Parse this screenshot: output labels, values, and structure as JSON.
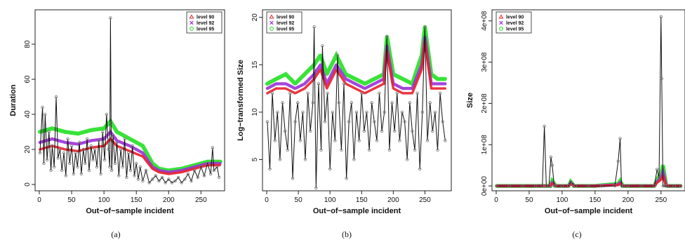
{
  "colors": {
    "observed": "#111111",
    "observed_points": "#777777",
    "level_90": "#e8202a",
    "level_92": "#9b30d8",
    "level_95": "#22e022"
  },
  "chart_data": [
    {
      "type": "line",
      "caption": "(a)",
      "xlabel": "Out−of−sample incident",
      "ylabel": "Duration",
      "xlim": [
        0,
        280
      ],
      "ylim": [
        -2,
        98
      ],
      "xticks": [
        0,
        50,
        100,
        150,
        200,
        250
      ],
      "xtick_labels": [
        "0",
        "50",
        "100",
        "150",
        "200",
        "250"
      ],
      "yticks": [
        0,
        20,
        40,
        60,
        80
      ],
      "ytick_labels": [
        "0",
        "20",
        "40",
        "60",
        "80"
      ],
      "legend": {
        "position": "top-right",
        "entries": [
          "level 90",
          "level 92",
          "level 95"
        ]
      },
      "observed": {
        "x": [
          1,
          5,
          7,
          9,
          12,
          15,
          18,
          20,
          23,
          26,
          29,
          32,
          35,
          38,
          41,
          44,
          47,
          50,
          53,
          56,
          59,
          62,
          65,
          68,
          71,
          74,
          77,
          80,
          83,
          86,
          89,
          92,
          95,
          98,
          101,
          104,
          107,
          109,
          110,
          111,
          112,
          114,
          117,
          120,
          123,
          126,
          129,
          132,
          135,
          138,
          141,
          144,
          147,
          150,
          153,
          156,
          160,
          165,
          170,
          175,
          180,
          185,
          190,
          195,
          200,
          205,
          210,
          215,
          220,
          225,
          230,
          235,
          240,
          245,
          250,
          255,
          260,
          265,
          268,
          270,
          275,
          278
        ],
        "y": [
          18,
          44,
          12,
          40,
          14,
          30,
          8,
          22,
          10,
          50,
          15,
          20,
          8,
          18,
          5,
          26,
          12,
          22,
          6,
          18,
          10,
          24,
          6,
          20,
          12,
          26,
          8,
          22,
          14,
          20,
          10,
          25,
          6,
          30,
          14,
          40,
          20,
          10,
          95,
          35,
          8,
          28,
          12,
          24,
          5,
          20,
          10,
          26,
          4,
          18,
          8,
          22,
          5,
          12,
          3,
          10,
          2,
          8,
          1,
          3,
          5,
          2,
          4,
          1,
          3,
          1,
          2,
          4,
          1,
          3,
          6,
          2,
          8,
          4,
          10,
          5,
          12,
          6,
          21,
          8,
          10,
          4
        ]
      },
      "quantile_95": {
        "x": [
          1,
          20,
          40,
          60,
          80,
          100,
          110,
          120,
          140,
          160,
          175,
          185,
          200,
          220,
          240,
          260,
          280
        ],
        "y": [
          30,
          32,
          30,
          29,
          31,
          32,
          36,
          30,
          26,
          22,
          12,
          9,
          8,
          9,
          11,
          13,
          13
        ]
      },
      "quantile_92": {
        "x": [
          1,
          20,
          40,
          60,
          80,
          100,
          110,
          120,
          140,
          160,
          175,
          185,
          200,
          220,
          240,
          260,
          280
        ],
        "y": [
          24,
          26,
          24,
          23,
          25,
          26,
          30,
          25,
          22,
          18,
          10,
          8,
          7,
          8,
          10,
          12,
          12
        ]
      },
      "quantile_90": {
        "x": [
          1,
          20,
          40,
          60,
          80,
          100,
          110,
          120,
          140,
          160,
          175,
          185,
          200,
          220,
          240,
          260,
          280
        ],
        "y": [
          20,
          22,
          20,
          19,
          21,
          22,
          26,
          22,
          19,
          16,
          9,
          7,
          6,
          7,
          9,
          11,
          11
        ]
      }
    },
    {
      "type": "line",
      "caption": "(b)",
      "xlabel": "Out−of−sample incident",
      "ylabel": "Log−transformed Size",
      "xlim": [
        0,
        285
      ],
      "ylim": [
        2,
        20.5
      ],
      "xticks": [
        0,
        50,
        100,
        150,
        200,
        250
      ],
      "xtick_labels": [
        "0",
        "50",
        "100",
        "150",
        "200",
        "250"
      ],
      "yticks": [
        5,
        10,
        15,
        20
      ],
      "ytick_labels": [
        "5",
        "10",
        "15",
        "20"
      ],
      "legend": {
        "position": "top-left",
        "entries": [
          "level 90",
          "level 92",
          "level 95"
        ]
      },
      "observed": {
        "x": [
          1,
          5,
          9,
          13,
          17,
          21,
          25,
          29,
          33,
          37,
          41,
          45,
          49,
          53,
          57,
          61,
          65,
          69,
          73,
          75,
          78,
          82,
          86,
          88,
          92,
          96,
          100,
          104,
          108,
          112,
          114,
          118,
          122,
          126,
          130,
          134,
          138,
          142,
          146,
          150,
          154,
          158,
          162,
          166,
          170,
          174,
          178,
          182,
          186,
          190,
          194,
          198,
          202,
          206,
          210,
          214,
          218,
          222,
          226,
          230,
          234,
          238,
          242,
          246,
          250,
          254,
          258,
          262,
          266,
          270,
          274,
          278,
          282
        ],
        "y": [
          9,
          4,
          12,
          7,
          10,
          5,
          11,
          8,
          6,
          12,
          3,
          9,
          11,
          7,
          10,
          5,
          12,
          8,
          11,
          19,
          2,
          13,
          6,
          17,
          9,
          12,
          4,
          10,
          7,
          16,
          11,
          6,
          13,
          3,
          9,
          11,
          5,
          10,
          7,
          12,
          8,
          10,
          6,
          11,
          9,
          7,
          12,
          8,
          10,
          18,
          6,
          11,
          8,
          12,
          7,
          10,
          9,
          5,
          11,
          8,
          6,
          12,
          4,
          10,
          19,
          7,
          11,
          8,
          10,
          6,
          12,
          9,
          7
        ]
      },
      "quantile_95": {
        "x": [
          1,
          15,
          30,
          45,
          60,
          75,
          85,
          95,
          110,
          125,
          140,
          155,
          170,
          185,
          190,
          200,
          215,
          230,
          245,
          250,
          260,
          270,
          282
        ],
        "y": [
          13,
          13.5,
          14,
          13,
          14,
          15,
          16,
          14,
          16,
          14,
          13.5,
          13,
          13.5,
          14,
          18,
          14,
          13.5,
          13,
          16,
          19,
          14,
          13.5,
          13.5
        ]
      },
      "quantile_92": {
        "x": [
          1,
          15,
          30,
          45,
          60,
          75,
          85,
          95,
          110,
          125,
          140,
          155,
          170,
          185,
          190,
          200,
          215,
          230,
          245,
          250,
          260,
          270,
          282
        ],
        "y": [
          12.5,
          13,
          13,
          12.5,
          13,
          14,
          15,
          13,
          15,
          13.5,
          13,
          12.5,
          13,
          13.5,
          17,
          13,
          12.5,
          12.5,
          15,
          18,
          13,
          13,
          13
        ]
      },
      "quantile_90": {
        "x": [
          1,
          15,
          30,
          45,
          60,
          75,
          85,
          95,
          110,
          125,
          140,
          155,
          170,
          185,
          190,
          200,
          215,
          230,
          245,
          250,
          260,
          270,
          282
        ],
        "y": [
          12,
          12.5,
          12.5,
          12,
          12.5,
          13.5,
          14.5,
          12.5,
          14.5,
          13,
          12.5,
          12,
          12.5,
          13,
          16.5,
          12.5,
          12,
          12,
          14.5,
          17.5,
          12.5,
          12.5,
          12.5
        ]
      }
    },
    {
      "type": "line",
      "caption": "(c)",
      "xlabel": "Out−of−sample incident",
      "ylabel": "Size",
      "xlim": [
        0,
        280
      ],
      "ylim": [
        -5000000,
        420000000
      ],
      "xticks": [
        0,
        50,
        100,
        150,
        200,
        250
      ],
      "xtick_labels": [
        "0",
        "50",
        "100",
        "150",
        "200",
        "250"
      ],
      "yticks": [
        0,
        100000000,
        200000000,
        300000000,
        400000000
      ],
      "ytick_labels": [
        "0e+00",
        "1e+08",
        "2e+08",
        "3e+08",
        "4e+08"
      ],
      "legend": {
        "position": "top-left",
        "entries": [
          "level 90",
          "level 92",
          "level 95"
        ]
      },
      "observed": {
        "x": [
          1,
          20,
          40,
          60,
          70,
          73,
          76,
          80,
          83,
          85,
          88,
          90,
          100,
          110,
          113,
          116,
          120,
          140,
          160,
          180,
          185,
          188,
          190,
          193,
          200,
          220,
          240,
          244,
          247,
          250,
          251,
          253,
          256,
          260,
          270,
          280
        ],
        "y": [
          0,
          0,
          0,
          0,
          0,
          145000000,
          0,
          0,
          70000000,
          50000000,
          0,
          0,
          0,
          0,
          10000000,
          5000000,
          0,
          0,
          0,
          0,
          60000000,
          115000000,
          0,
          0,
          0,
          0,
          0,
          40000000,
          20000000,
          410000000,
          260000000,
          0,
          0,
          0,
          0,
          0
        ]
      },
      "quantile_95": {
        "x": [
          1,
          50,
          82,
          85,
          90,
          110,
          113,
          118,
          150,
          185,
          188,
          192,
          240,
          244,
          250,
          253,
          258,
          280
        ],
        "y": [
          0,
          0,
          0,
          12000000,
          0,
          0,
          10000000,
          0,
          0,
          5000000,
          12000000,
          0,
          0,
          15000000,
          30000000,
          50000000,
          0,
          0
        ]
      },
      "quantile_92": {
        "x": [
          1,
          50,
          82,
          85,
          90,
          110,
          113,
          118,
          150,
          185,
          188,
          192,
          240,
          244,
          250,
          253,
          258,
          280
        ],
        "y": [
          0,
          0,
          0,
          8000000,
          0,
          0,
          7000000,
          0,
          0,
          3000000,
          8000000,
          0,
          0,
          10000000,
          20000000,
          35000000,
          0,
          0
        ]
      },
      "quantile_90": {
        "x": [
          1,
          50,
          82,
          85,
          90,
          110,
          113,
          118,
          150,
          185,
          188,
          192,
          240,
          244,
          250,
          253,
          258,
          280
        ],
        "y": [
          0,
          0,
          0,
          6000000,
          0,
          0,
          5000000,
          0,
          0,
          2000000,
          6000000,
          0,
          0,
          8000000,
          15000000,
          25000000,
          0,
          0
        ]
      }
    }
  ]
}
